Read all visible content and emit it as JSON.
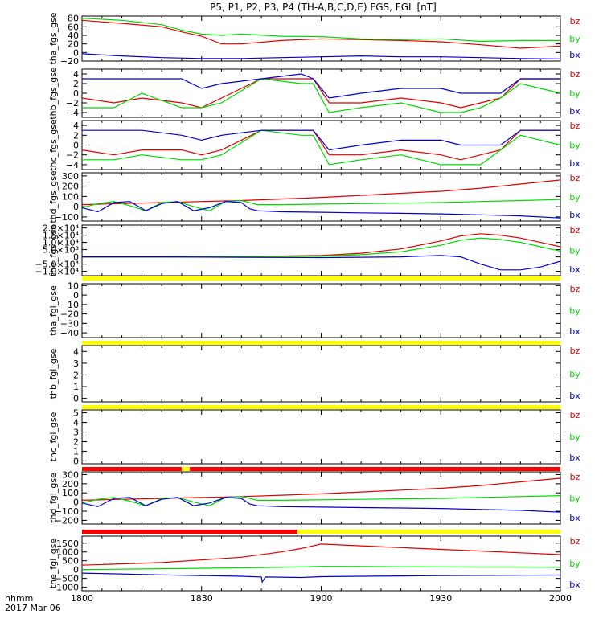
{
  "title": "P5, P1, P2, P3, P4 (TH-A,B,C,D,E) FGS, FGL [nT]",
  "footer": {
    "line1": "hhmm",
    "line2": "2017 Mar 06"
  },
  "colors": {
    "bz": "#e00000",
    "by": "#00d800",
    "bx": "#0000d0",
    "bar_yellow": "#ffff00",
    "bar_red": "#ff0000"
  },
  "xaxis": {
    "ticks": [
      "1800",
      "1830",
      "1900",
      "1930",
      "2000"
    ],
    "tick_minutes": [
      0,
      30,
      60,
      90,
      120
    ]
  },
  "chart_data": [
    {
      "type": "line",
      "ylabel": "tha_fgs_gse",
      "ylim": [
        -20,
        85
      ],
      "yticks": [
        "80",
        "60",
        "40",
        "20",
        "0",
        "−20"
      ],
      "ytick_values": [
        80,
        60,
        40,
        20,
        0,
        -20
      ],
      "legend": [
        "bz",
        "by",
        "bx"
      ],
      "series": [
        {
          "name": "bz",
          "x": [
            0,
            10,
            20,
            25,
            30,
            35,
            40,
            50,
            60,
            70,
            80,
            90,
            100,
            110,
            120
          ],
          "values": [
            75,
            68,
            60,
            48,
            38,
            20,
            20,
            28,
            32,
            30,
            28,
            25,
            18,
            10,
            15
          ]
        },
        {
          "name": "by",
          "x": [
            0,
            10,
            20,
            25,
            30,
            35,
            40,
            50,
            60,
            70,
            80,
            90,
            100,
            110,
            120
          ],
          "values": [
            80,
            75,
            65,
            52,
            43,
            40,
            43,
            38,
            37,
            32,
            30,
            32,
            26,
            28,
            28
          ]
        },
        {
          "name": "bx",
          "x": [
            0,
            10,
            20,
            30,
            40,
            50,
            60,
            70,
            80,
            90,
            100,
            110,
            120
          ],
          "values": [
            -3,
            -8,
            -12,
            -14,
            -14,
            -12,
            -10,
            -8,
            -10,
            -10,
            -12,
            -14,
            -15
          ]
        }
      ]
    },
    {
      "type": "line",
      "ylabel": "thb_fgs_gse",
      "ylim": [
        -5,
        5
      ],
      "yticks": [
        "4",
        "2",
        "0",
        "−2",
        "−4"
      ],
      "ytick_values": [
        4,
        2,
        0,
        -2,
        -4
      ],
      "legend": [
        "bz",
        "by",
        "bx"
      ],
      "series": [
        {
          "name": "bz",
          "x": [
            0,
            8,
            15,
            25,
            30,
            35,
            45,
            55,
            58,
            62,
            70,
            80,
            90,
            95,
            100,
            105,
            110,
            115,
            120
          ],
          "values": [
            -1,
            -2,
            -1,
            -2,
            -3,
            -1,
            3,
            3,
            3,
            -2,
            -2,
            -1,
            -2,
            -3,
            -2,
            -1,
            3,
            3,
            3
          ]
        },
        {
          "name": "by",
          "x": [
            0,
            8,
            15,
            25,
            30,
            35,
            45,
            55,
            58,
            62,
            70,
            80,
            90,
            95,
            100,
            105,
            110,
            115,
            120
          ],
          "values": [
            -3,
            -3,
            0,
            -3,
            -3,
            -2,
            3,
            2,
            2,
            -4,
            -3,
            -2,
            -4,
            -4,
            -3,
            -1,
            2,
            1,
            0
          ]
        },
        {
          "name": "bx",
          "x": [
            0,
            8,
            15,
            25,
            30,
            35,
            45,
            55,
            58,
            62,
            70,
            80,
            90,
            95,
            100,
            105,
            110,
            115,
            120
          ],
          "values": [
            3,
            3,
            3,
            3,
            1,
            2,
            3,
            4,
            3,
            -1,
            0,
            1,
            1,
            0,
            0,
            0,
            3,
            3,
            3
          ]
        }
      ]
    },
    {
      "type": "line",
      "ylabel": "thc_fgs_gse",
      "ylim": [
        -5,
        5
      ],
      "yticks": [
        "4",
        "2",
        "0",
        "−2",
        "−4"
      ],
      "ytick_values": [
        4,
        2,
        0,
        -2,
        -4
      ],
      "legend": [
        "bz",
        "by",
        "bx"
      ],
      "series": [
        {
          "name": "bz",
          "x": [
            0,
            8,
            15,
            25,
            30,
            35,
            45,
            55,
            58,
            62,
            70,
            80,
            90,
            95,
            100,
            105,
            110,
            115,
            120
          ],
          "values": [
            -1,
            -2,
            -1,
            -1,
            -2,
            -1,
            3,
            3,
            3,
            -2,
            -2,
            -1,
            -2,
            -3,
            -2,
            -1,
            3,
            3,
            3
          ]
        },
        {
          "name": "by",
          "x": [
            0,
            8,
            15,
            25,
            30,
            35,
            45,
            55,
            58,
            62,
            70,
            80,
            90,
            95,
            100,
            105,
            110,
            115,
            120
          ],
          "values": [
            -3,
            -3,
            -2,
            -3,
            -3,
            -2,
            3,
            2,
            2,
            -4,
            -3,
            -2,
            -4,
            -4,
            -4,
            -1,
            2,
            1,
            0
          ]
        },
        {
          "name": "bx",
          "x": [
            0,
            8,
            15,
            25,
            30,
            35,
            45,
            55,
            58,
            62,
            70,
            80,
            90,
            95,
            100,
            105,
            110,
            115,
            120
          ],
          "values": [
            3,
            3,
            3,
            2,
            1,
            2,
            3,
            3,
            3,
            -1,
            0,
            1,
            1,
            0,
            0,
            0,
            3,
            3,
            3
          ]
        }
      ]
    },
    {
      "type": "line",
      "ylabel": "thd_fgs_gse",
      "ylim": [
        -140,
        330
      ],
      "yticks": [
        "300",
        "200",
        "100",
        "0",
        "−100"
      ],
      "ytick_values": [
        300,
        200,
        100,
        0,
        -100
      ],
      "legend": [
        "bz",
        "by",
        "bx"
      ],
      "series": [
        {
          "name": "bz",
          "x": [
            0,
            10,
            20,
            30,
            40,
            50,
            60,
            70,
            80,
            90,
            100,
            110,
            120
          ],
          "values": [
            20,
            30,
            40,
            50,
            60,
            75,
            90,
            110,
            130,
            150,
            180,
            220,
            260
          ]
        },
        {
          "name": "by",
          "x": [
            0,
            4,
            8,
            12,
            16,
            20,
            24,
            28,
            32,
            36,
            40,
            42,
            44,
            50,
            60,
            70,
            80,
            90,
            100,
            110,
            120
          ],
          "values": [
            -10,
            30,
            50,
            10,
            -40,
            40,
            50,
            0,
            -40,
            50,
            60,
            40,
            20,
            20,
            25,
            30,
            35,
            40,
            50,
            60,
            70
          ]
        },
        {
          "name": "bx",
          "x": [
            0,
            4,
            8,
            12,
            16,
            20,
            24,
            28,
            32,
            36,
            40,
            42,
            44,
            50,
            60,
            70,
            80,
            90,
            100,
            110,
            120
          ],
          "values": [
            -10,
            -50,
            40,
            50,
            -40,
            30,
            50,
            -40,
            -10,
            50,
            40,
            -20,
            -40,
            -50,
            -55,
            -60,
            -65,
            -70,
            -80,
            -90,
            -110
          ]
        }
      ]
    },
    {
      "type": "line",
      "ylabel": "the_fgs_gse",
      "ylim": [
        -13000,
        22000
      ],
      "yticks": [
        "2.0×10⁴",
        "1.5×10⁴",
        "1.0×10⁴",
        "5.0×10³",
        "0",
        "−5.0×10³",
        "−1.0×10⁴"
      ],
      "ytick_values": [
        20000,
        15000,
        10000,
        5000,
        0,
        -5000,
        -10000
      ],
      "legend": [
        "bz",
        "by",
        "bx"
      ],
      "series": [
        {
          "name": "bz",
          "x": [
            0,
            20,
            40,
            60,
            70,
            80,
            90,
            95,
            100,
            105,
            110,
            115,
            120
          ],
          "values": [
            0,
            0,
            200,
            1000,
            2500,
            5500,
            11000,
            14500,
            16000,
            15000,
            13000,
            10000,
            7000
          ]
        },
        {
          "name": "by",
          "x": [
            0,
            20,
            40,
            60,
            70,
            80,
            90,
            95,
            100,
            105,
            110,
            115,
            120
          ],
          "values": [
            0,
            0,
            100,
            500,
            1500,
            3500,
            8000,
            11500,
            13000,
            12000,
            10000,
            7000,
            4000
          ]
        },
        {
          "name": "bx",
          "x": [
            0,
            20,
            40,
            60,
            70,
            80,
            90,
            95,
            100,
            105,
            110,
            115,
            120
          ],
          "values": [
            0,
            0,
            -300,
            -500,
            -300,
            0,
            1000,
            0,
            -5000,
            -9000,
            -9000,
            -7000,
            -3000
          ]
        }
      ]
    },
    {
      "type": "line",
      "ylabel": "tha_fgl_gse",
      "ylim": [
        -45,
        12
      ],
      "yticks": [
        "10",
        "0",
        "−10",
        "−20",
        "−30",
        "−40"
      ],
      "ytick_values": [
        10,
        0,
        -10,
        -20,
        -30,
        -40
      ],
      "legend": [
        "bz",
        "by",
        "bx"
      ],
      "series": []
    },
    {
      "type": "line",
      "ylabel": "thb_fgl_gse",
      "ylim": [
        -0.3,
        4.5
      ],
      "yticks": [
        "4",
        "3",
        "2",
        "1",
        "0"
      ],
      "ytick_values": [
        4,
        3,
        2,
        1,
        0
      ],
      "legend": [
        "bz",
        "by",
        "bx"
      ],
      "series": []
    },
    {
      "type": "line",
      "ylabel": "thc_fgl_gse",
      "ylim": [
        -0.3,
        5.3
      ],
      "yticks": [
        "5",
        "4",
        "3",
        "2",
        "1",
        "0"
      ],
      "ytick_values": [
        5,
        4,
        3,
        2,
        1,
        0
      ],
      "legend": [
        "bz",
        "by",
        "bx"
      ],
      "series": []
    },
    {
      "type": "line",
      "ylabel": "thd_fgl_gse",
      "ylim": [
        -240,
        330
      ],
      "yticks": [
        "300",
        "200",
        "100",
        "0",
        "−100",
        "−200"
      ],
      "ytick_values": [
        300,
        200,
        100,
        0,
        -100,
        -200
      ],
      "legend": [
        "bz",
        "by",
        "bx"
      ],
      "series": [
        {
          "name": "bz",
          "x": [
            0,
            10,
            20,
            30,
            40,
            50,
            60,
            70,
            80,
            90,
            100,
            110,
            120
          ],
          "values": [
            20,
            30,
            40,
            50,
            60,
            75,
            90,
            110,
            130,
            150,
            180,
            220,
            260
          ]
        },
        {
          "name": "by",
          "x": [
            0,
            4,
            8,
            12,
            16,
            20,
            24,
            28,
            32,
            36,
            40,
            42,
            44,
            50,
            60,
            70,
            80,
            90,
            100,
            110,
            120
          ],
          "values": [
            -10,
            30,
            50,
            10,
            -40,
            40,
            50,
            0,
            -40,
            50,
            60,
            40,
            20,
            20,
            25,
            30,
            35,
            40,
            50,
            60,
            70
          ]
        },
        {
          "name": "bx",
          "x": [
            0,
            4,
            8,
            12,
            16,
            20,
            24,
            28,
            32,
            36,
            40,
            42,
            44,
            50,
            60,
            70,
            80,
            90,
            100,
            110,
            120
          ],
          "values": [
            -10,
            -50,
            40,
            50,
            -40,
            30,
            50,
            -40,
            -10,
            50,
            40,
            -20,
            -40,
            -50,
            -55,
            -60,
            -65,
            -70,
            -80,
            -90,
            -110
          ]
        }
      ]
    },
    {
      "type": "line",
      "ylabel": "the_fgl_gse",
      "ylim": [
        -1200,
        1900
      ],
      "yticks": [
        "1500",
        "1000",
        "500",
        "0",
        "−500",
        "−1000"
      ],
      "ytick_values": [
        1500,
        1000,
        500,
        0,
        -500,
        -1000
      ],
      "legend": [
        "bz",
        "by",
        "bx"
      ],
      "series": [
        {
          "name": "bz",
          "x": [
            0,
            20,
            40,
            50,
            55,
            58,
            60,
            70,
            80,
            90,
            100,
            110,
            120
          ],
          "values": [
            250,
            400,
            700,
            1000,
            1200,
            1350,
            1450,
            1350,
            1250,
            1150,
            1050,
            950,
            850
          ]
        },
        {
          "name": "by",
          "x": [
            0,
            20,
            40,
            55,
            60,
            70,
            80,
            90,
            100,
            110,
            120
          ],
          "values": [
            0,
            50,
            100,
            150,
            180,
            170,
            160,
            150,
            140,
            140,
            130
          ]
        },
        {
          "name": "bx",
          "x": [
            0,
            20,
            40,
            45,
            45.2,
            46,
            55,
            60,
            70,
            80,
            90,
            100,
            110,
            120
          ],
          "values": [
            -200,
            -300,
            -380,
            -420,
            -700,
            -420,
            -450,
            -400,
            -380,
            -360,
            -340,
            -330,
            -320,
            -310
          ]
        }
      ]
    }
  ]
}
